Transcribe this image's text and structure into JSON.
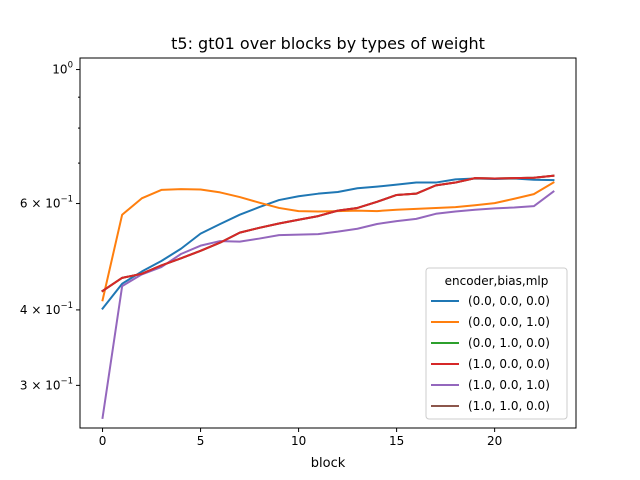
{
  "chart_data": {
    "type": "line",
    "title": "t5: gt01 over blocks by types of weight",
    "xlabel": "block",
    "ylabel": "",
    "yscale": "log",
    "xlim": [
      -1.15,
      24.15
    ],
    "ylim": [
      0.255,
      1.045
    ],
    "grid": false,
    "legend_placement": "lower right",
    "legend_title": "encoder,bias,mlp",
    "x_ticks": [
      0,
      5,
      10,
      15,
      20
    ],
    "x_tick_labels": [
      "0",
      "5",
      "10",
      "15",
      "20"
    ],
    "y_major_ticks": [
      {
        "value": 1.0,
        "base": "10",
        "exp": "0",
        "mantissa": ""
      },
      {
        "value": 0.6,
        "base": "10",
        "exp": "−1",
        "mantissa": "6 × "
      },
      {
        "value": 0.4,
        "base": "10",
        "exp": "−1",
        "mantissa": "4 × "
      },
      {
        "value": 0.3,
        "base": "10",
        "exp": "−1",
        "mantissa": "3 × "
      }
    ],
    "y_minor_ticks": [
      0.7,
      0.8,
      0.9
    ],
    "x": [
      0,
      1,
      2,
      3,
      4,
      5,
      6,
      7,
      8,
      9,
      10,
      11,
      12,
      13,
      14,
      15,
      16,
      17,
      18,
      19,
      20,
      21,
      22,
      23
    ],
    "series": [
      {
        "name": "(0.0, 0.0, 0.0)",
        "color": "#1f77b4",
        "values": [
          0.402,
          0.442,
          0.463,
          0.482,
          0.505,
          0.535,
          0.555,
          0.575,
          0.592,
          0.608,
          0.617,
          0.623,
          0.627,
          0.636,
          0.64,
          0.645,
          0.65,
          0.65,
          0.658,
          0.66,
          0.659,
          0.66,
          0.657,
          0.656
        ]
      },
      {
        "name": "(0.0, 0.0, 1.0)",
        "color": "#ff7f0e",
        "values": [
          0.415,
          0.575,
          0.612,
          0.632,
          0.634,
          0.633,
          0.626,
          0.615,
          0.602,
          0.59,
          0.583,
          0.582,
          0.583,
          0.584,
          0.583,
          0.586,
          0.588,
          0.59,
          0.592,
          0.596,
          0.601,
          0.611,
          0.622,
          0.65
        ]
      },
      {
        "name": "(0.0, 1.0, 0.0)",
        "color": "#2ca02c",
        "values": [
          0.43,
          0.452,
          0.459,
          0.474,
          0.487,
          0.501,
          0.517,
          0.537,
          0.547,
          0.556,
          0.564,
          0.572,
          0.584,
          0.59,
          0.604,
          0.62,
          0.623,
          0.643,
          0.65,
          0.661,
          0.66,
          0.661,
          0.662,
          0.667
        ]
      },
      {
        "name": "(1.0, 0.0, 0.0)",
        "color": "#d62728",
        "values": [
          0.43,
          0.452,
          0.459,
          0.474,
          0.487,
          0.501,
          0.517,
          0.537,
          0.547,
          0.556,
          0.564,
          0.572,
          0.584,
          0.59,
          0.604,
          0.62,
          0.623,
          0.643,
          0.65,
          0.661,
          0.66,
          0.661,
          0.662,
          0.667
        ]
      },
      {
        "name": "(1.0, 0.0, 1.0)",
        "color": "#9467bd",
        "values": [
          0.265,
          0.438,
          0.458,
          0.471,
          0.495,
          0.511,
          0.52,
          0.519,
          0.525,
          0.532,
          0.533,
          0.534,
          0.539,
          0.545,
          0.555,
          0.561,
          0.566,
          0.577,
          0.582,
          0.586,
          0.589,
          0.591,
          0.594,
          0.628
        ]
      },
      {
        "name": "(1.0, 1.0, 0.0)",
        "color": "#8c564b",
        "values": [
          0.43,
          0.452,
          0.459,
          0.474,
          0.487,
          0.501,
          0.517,
          0.537,
          0.547,
          0.556,
          0.564,
          0.572,
          0.584,
          0.59,
          0.604,
          0.62,
          0.623,
          0.643,
          0.65,
          0.661,
          0.66,
          0.661,
          0.662,
          0.667
        ]
      }
    ],
    "draw_order": [
      0,
      1,
      2,
      4,
      5,
      3
    ]
  }
}
